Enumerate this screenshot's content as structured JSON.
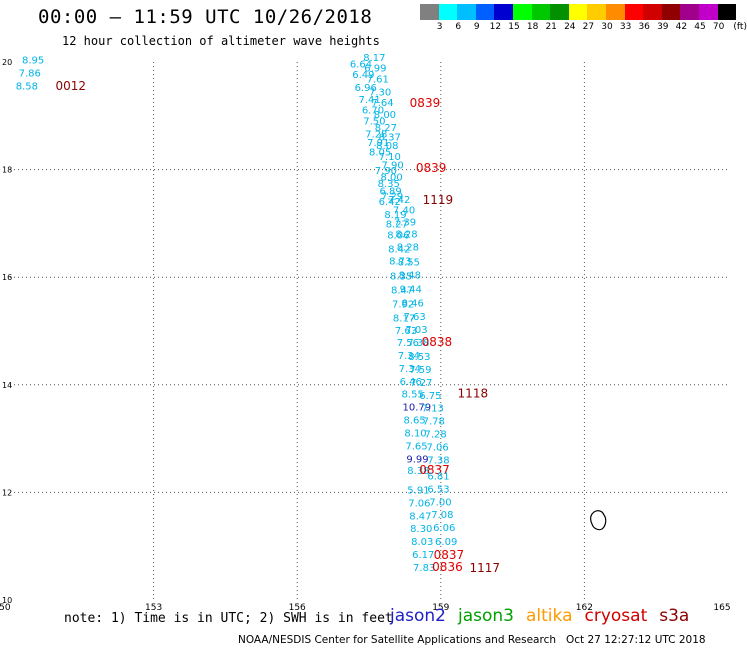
{
  "header": {
    "title": "00:00 – 11:59 UTC 10/26/2018",
    "subtitle": "12 hour collection of altimeter wave heights"
  },
  "legend": {
    "unit": "(ft)",
    "bins": [
      {
        "color": "#808080",
        "label": ""
      },
      {
        "color": "#00ffff",
        "label": "3"
      },
      {
        "color": "#00bfff",
        "label": "6"
      },
      {
        "color": "#0060ff",
        "label": "9"
      },
      {
        "color": "#0000d0",
        "label": "12"
      },
      {
        "color": "#00ff00",
        "label": "15"
      },
      {
        "color": "#00c800",
        "label": "18"
      },
      {
        "color": "#009000",
        "label": "21"
      },
      {
        "color": "#ffff00",
        "label": "24"
      },
      {
        "color": "#ffcc00",
        "label": "27"
      },
      {
        "color": "#ff8c00",
        "label": "30"
      },
      {
        "color": "#ff0000",
        "label": "33"
      },
      {
        "color": "#d00000",
        "label": "36"
      },
      {
        "color": "#900000",
        "label": "39"
      },
      {
        "color": "#a0008c",
        "label": "42"
      },
      {
        "color": "#c000c8",
        "label": "45"
      },
      {
        "color": "#000000",
        "label": "70"
      }
    ]
  },
  "map": {
    "lon_range": [
      150,
      165
    ],
    "lat_range": [
      10,
      20
    ],
    "x_ticks": [
      "150",
      "153",
      "156",
      "159",
      "162",
      "165"
    ],
    "y_ticks": [
      "10",
      "12",
      "14",
      "16",
      "18",
      "20"
    ],
    "colors": {
      "cyan": "#00b4e6",
      "blue": "#1a1aaa",
      "darkred": "#8b0000",
      "red": "#e00000"
    },
    "wave_labels": [
      {
        "text": "8.95",
        "lon": 150.25,
        "lat": 19.97,
        "c": "cyan"
      },
      {
        "text": "7.86",
        "lon": 150.18,
        "lat": 19.73,
        "c": "cyan"
      },
      {
        "text": "8.58",
        "lon": 150.12,
        "lat": 19.49,
        "c": "cyan"
      },
      {
        "text": "0012",
        "lon": 150.95,
        "lat": 19.48,
        "c": "darkred"
      },
      {
        "text": "8.17",
        "lon": 157.38,
        "lat": 20.02,
        "c": "cyan"
      },
      {
        "text": "6.64",
        "lon": 157.1,
        "lat": 19.9,
        "c": "cyan"
      },
      {
        "text": "6.99",
        "lon": 157.4,
        "lat": 19.82,
        "c": "cyan"
      },
      {
        "text": "6.49",
        "lon": 157.15,
        "lat": 19.7,
        "c": "cyan"
      },
      {
        "text": "7.61",
        "lon": 157.45,
        "lat": 19.62,
        "c": "cyan"
      },
      {
        "text": "6.96",
        "lon": 157.2,
        "lat": 19.46,
        "c": "cyan"
      },
      {
        "text": "7.30",
        "lon": 157.5,
        "lat": 19.38,
        "c": "cyan"
      },
      {
        "text": "7.41",
        "lon": 157.28,
        "lat": 19.24,
        "c": "cyan"
      },
      {
        "text": "7.64",
        "lon": 157.55,
        "lat": 19.18,
        "c": "cyan"
      },
      {
        "text": "6.70",
        "lon": 157.35,
        "lat": 19.04,
        "c": "cyan"
      },
      {
        "text": "8.00",
        "lon": 157.6,
        "lat": 18.96,
        "c": "cyan"
      },
      {
        "text": "0839",
        "lon": 158.35,
        "lat": 19.16,
        "c": "red"
      },
      {
        "text": "7.50",
        "lon": 157.38,
        "lat": 18.84,
        "c": "cyan"
      },
      {
        "text": "8.27",
        "lon": 157.62,
        "lat": 18.72,
        "c": "cyan"
      },
      {
        "text": "7.28",
        "lon": 157.42,
        "lat": 18.6,
        "c": "cyan"
      },
      {
        "text": "8.37",
        "lon": 157.7,
        "lat": 18.54,
        "c": "cyan"
      },
      {
        "text": "7.91",
        "lon": 157.46,
        "lat": 18.44,
        "c": "cyan"
      },
      {
        "text": "8.08",
        "lon": 157.65,
        "lat": 18.38,
        "c": "cyan"
      },
      {
        "text": "8.05",
        "lon": 157.5,
        "lat": 18.26,
        "c": "cyan"
      },
      {
        "text": "7.10",
        "lon": 157.7,
        "lat": 18.18,
        "c": "cyan"
      },
      {
        "text": "0839",
        "lon": 158.48,
        "lat": 17.96,
        "c": "red"
      },
      {
        "text": "7.90",
        "lon": 157.76,
        "lat": 18.02,
        "c": "cyan"
      },
      {
        "text": "7.90",
        "lon": 157.62,
        "lat": 17.92,
        "c": "cyan"
      },
      {
        "text": "8.00",
        "lon": 157.74,
        "lat": 17.8,
        "c": "cyan"
      },
      {
        "text": "8.35",
        "lon": 157.68,
        "lat": 17.68,
        "c": "cyan"
      },
      {
        "text": "6.89",
        "lon": 157.72,
        "lat": 17.54,
        "c": "cyan"
      },
      {
        "text": "7.29",
        "lon": 157.75,
        "lat": 17.44,
        "c": "cyan"
      },
      {
        "text": "6.42",
        "lon": 157.7,
        "lat": 17.34,
        "c": "cyan"
      },
      {
        "text": "7.42",
        "lon": 157.9,
        "lat": 17.38,
        "c": "cyan"
      },
      {
        "text": "1119",
        "lon": 158.62,
        "lat": 17.36,
        "c": "darkred"
      },
      {
        "text": "7.40",
        "lon": 158.0,
        "lat": 17.18,
        "c": "cyan"
      },
      {
        "text": "8.19",
        "lon": 157.82,
        "lat": 17.1,
        "c": "cyan"
      },
      {
        "text": "7.39",
        "lon": 158.02,
        "lat": 16.96,
        "c": "cyan"
      },
      {
        "text": "8.27",
        "lon": 157.85,
        "lat": 16.92,
        "c": "cyan"
      },
      {
        "text": "8.28",
        "lon": 158.05,
        "lat": 16.74,
        "c": "cyan"
      },
      {
        "text": "8.06",
        "lon": 157.88,
        "lat": 16.72,
        "c": "cyan"
      },
      {
        "text": "8.28",
        "lon": 158.08,
        "lat": 16.5,
        "c": "cyan"
      },
      {
        "text": "8.42",
        "lon": 157.9,
        "lat": 16.46,
        "c": "cyan"
      },
      {
        "text": "8.55",
        "lon": 158.1,
        "lat": 16.22,
        "c": "cyan"
      },
      {
        "text": "8.73",
        "lon": 157.92,
        "lat": 16.24,
        "c": "cyan"
      },
      {
        "text": "8.48",
        "lon": 158.12,
        "lat": 15.98,
        "c": "cyan"
      },
      {
        "text": "8.35",
        "lon": 157.94,
        "lat": 15.96,
        "c": "cyan"
      },
      {
        "text": "9.44",
        "lon": 158.14,
        "lat": 15.72,
        "c": "cyan"
      },
      {
        "text": "8.47",
        "lon": 157.96,
        "lat": 15.7,
        "c": "cyan"
      },
      {
        "text": "8.46",
        "lon": 158.18,
        "lat": 15.46,
        "c": "cyan"
      },
      {
        "text": "7.92",
        "lon": 157.98,
        "lat": 15.44,
        "c": "cyan"
      },
      {
        "text": "7.63",
        "lon": 158.22,
        "lat": 15.2,
        "c": "cyan"
      },
      {
        "text": "8.17",
        "lon": 158.0,
        "lat": 15.18,
        "c": "cyan"
      },
      {
        "text": "7.03",
        "lon": 158.26,
        "lat": 14.96,
        "c": "cyan"
      },
      {
        "text": "7.63",
        "lon": 158.04,
        "lat": 14.94,
        "c": "cyan"
      },
      {
        "text": "7.56",
        "lon": 158.08,
        "lat": 14.72,
        "c": "cyan"
      },
      {
        "text": "7.38",
        "lon": 158.3,
        "lat": 14.72,
        "c": "cyan"
      },
      {
        "text": "0838",
        "lon": 158.6,
        "lat": 14.72,
        "c": "red"
      },
      {
        "text": "7.34",
        "lon": 158.1,
        "lat": 14.48,
        "c": "cyan"
      },
      {
        "text": "8.53",
        "lon": 158.32,
        "lat": 14.46,
        "c": "cyan"
      },
      {
        "text": "7.34",
        "lon": 158.12,
        "lat": 14.24,
        "c": "cyan"
      },
      {
        "text": "7.59",
        "lon": 158.34,
        "lat": 14.22,
        "c": "cyan"
      },
      {
        "text": "6.46",
        "lon": 158.14,
        "lat": 14.0,
        "c": "cyan"
      },
      {
        "text": "7.27",
        "lon": 158.36,
        "lat": 13.98,
        "c": "cyan"
      },
      {
        "text": "8.55",
        "lon": 158.18,
        "lat": 13.76,
        "c": "cyan"
      },
      {
        "text": "6.75",
        "lon": 158.55,
        "lat": 13.74,
        "c": "cyan"
      },
      {
        "text": "1118",
        "lon": 159.35,
        "lat": 13.76,
        "c": "darkred"
      },
      {
        "text": "10.79",
        "lon": 158.2,
        "lat": 13.52,
        "c": "blue"
      },
      {
        "text": "7.13",
        "lon": 158.6,
        "lat": 13.5,
        "c": "cyan"
      },
      {
        "text": "8.65",
        "lon": 158.22,
        "lat": 13.28,
        "c": "cyan"
      },
      {
        "text": "7.78",
        "lon": 158.62,
        "lat": 13.26,
        "c": "cyan"
      },
      {
        "text": "8.10",
        "lon": 158.24,
        "lat": 13.04,
        "c": "cyan"
      },
      {
        "text": "7.28",
        "lon": 158.66,
        "lat": 13.02,
        "c": "cyan"
      },
      {
        "text": "7.65",
        "lon": 158.26,
        "lat": 12.8,
        "c": "cyan"
      },
      {
        "text": "7.06",
        "lon": 158.7,
        "lat": 12.78,
        "c": "cyan"
      },
      {
        "text": "9.99",
        "lon": 158.28,
        "lat": 12.56,
        "c": "blue"
      },
      {
        "text": "7.38",
        "lon": 158.72,
        "lat": 12.54,
        "c": "cyan"
      },
      {
        "text": "8.38",
        "lon": 158.3,
        "lat": 12.34,
        "c": "cyan"
      },
      {
        "text": "0837",
        "lon": 158.55,
        "lat": 12.34,
        "c": "red"
      },
      {
        "text": "6.81",
        "lon": 158.72,
        "lat": 12.24,
        "c": "cyan"
      },
      {
        "text": "5.91",
        "lon": 158.3,
        "lat": 11.98,
        "c": "cyan"
      },
      {
        "text": "6.53",
        "lon": 158.72,
        "lat": 12.0,
        "c": "cyan"
      },
      {
        "text": "7.06",
        "lon": 158.32,
        "lat": 11.74,
        "c": "cyan"
      },
      {
        "text": "7.00",
        "lon": 158.76,
        "lat": 11.76,
        "c": "cyan"
      },
      {
        "text": "8.47",
        "lon": 158.34,
        "lat": 11.5,
        "c": "cyan"
      },
      {
        "text": "7.08",
        "lon": 158.8,
        "lat": 11.52,
        "c": "cyan"
      },
      {
        "text": "8.30",
        "lon": 158.36,
        "lat": 11.26,
        "c": "cyan"
      },
      {
        "text": "6.06",
        "lon": 158.84,
        "lat": 11.28,
        "c": "cyan"
      },
      {
        "text": "8.03",
        "lon": 158.38,
        "lat": 11.02,
        "c": "cyan"
      },
      {
        "text": "6.09",
        "lon": 158.88,
        "lat": 11.02,
        "c": "cyan"
      },
      {
        "text": "6.17",
        "lon": 158.4,
        "lat": 10.78,
        "c": "cyan"
      },
      {
        "text": "0837",
        "lon": 158.85,
        "lat": 10.76,
        "c": "red"
      },
      {
        "text": "7.83",
        "lon": 158.42,
        "lat": 10.54,
        "c": "cyan"
      },
      {
        "text": "0836",
        "lon": 158.82,
        "lat": 10.54,
        "c": "red"
      },
      {
        "text": "1117",
        "lon": 159.6,
        "lat": 10.52,
        "c": "darkred"
      }
    ]
  },
  "footer": {
    "note": "note: 1) Time is in UTC; 2) SWH is in feet",
    "credit": "NOAA/NESDIS Center for Satellite Applications and Research   Oct 27 12:27:12 UTC 2018",
    "satellites": [
      {
        "name": "jason2",
        "color": "#1e1ec8"
      },
      {
        "name": "jason3",
        "color": "#00a000"
      },
      {
        "name": "altika",
        "color": "#ff9900"
      },
      {
        "name": "cryosat",
        "color": "#d00000"
      },
      {
        "name": "s3a",
        "color": "#8b0000"
      }
    ]
  }
}
